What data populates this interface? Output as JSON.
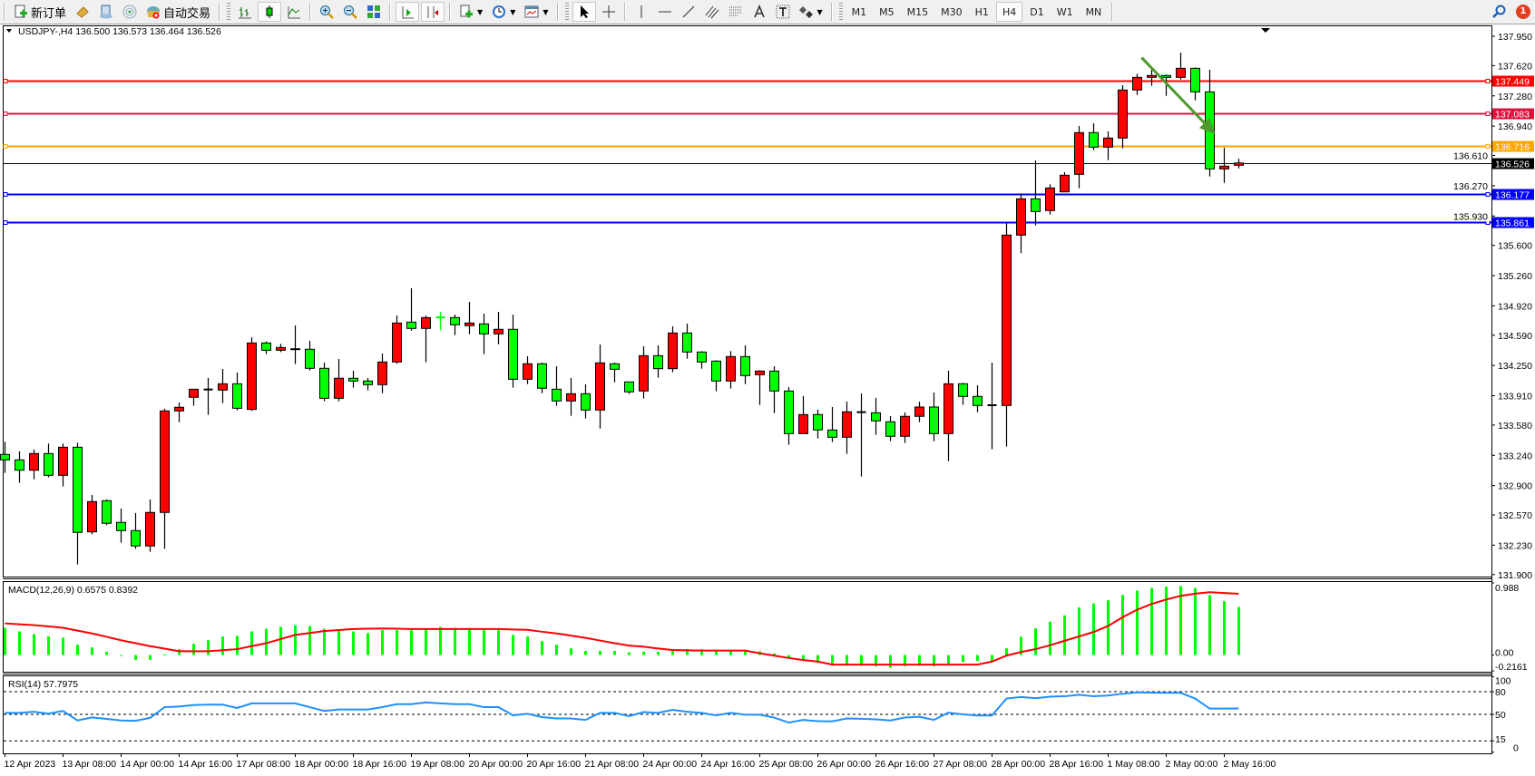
{
  "toolbar": {
    "new_order_label": "新订单",
    "auto_trading_label": "自动交易",
    "timeframes": [
      "M1",
      "M5",
      "M15",
      "M30",
      "H1",
      "H4",
      "D1",
      "W1",
      "MN"
    ],
    "active_timeframe": "H4",
    "notification_count": "1",
    "icons": [
      "new-order-icon",
      "market-watch-icon",
      "navigator-icon",
      "signals-icon",
      "auto-trading-icon",
      "bar-chart-icon",
      "candlestick-icon",
      "line-chart-icon",
      "zoom-in-icon",
      "zoom-out-icon",
      "tile-windows-icon",
      "auto-scroll-icon",
      "chart-shift-icon",
      "indicators-icon",
      "periods-icon",
      "templates-icon",
      "cursor-icon",
      "crosshair-icon",
      "vertical-line-icon",
      "horizontal-line-icon",
      "trendline-icon",
      "equidistant-channel-icon",
      "fibonacci-icon",
      "text-icon",
      "text-label-icon",
      "arrows-icon",
      "search-icon",
      "notification-icon"
    ]
  },
  "chart": {
    "title": "USDJPY-,H4",
    "ohlc_text": "136.500 136.573 136.464 136.526"
  },
  "chart_data": {
    "type": "candlestick",
    "symbol": "USDJPY-",
    "timeframe": "H4",
    "ylim": [
      131.898,
      138.072
    ],
    "price_ticks": [
      "137.950",
      "137.620",
      "137.280",
      "136.940",
      "136.610",
      "136.270",
      "135.930",
      "135.600",
      "135.260",
      "134.920",
      "134.590",
      "134.250",
      "133.910",
      "133.580",
      "133.240",
      "132.900",
      "132.570",
      "132.230",
      "131.900"
    ],
    "bull_color": "#ff0000",
    "bear_color": "#00ff00",
    "candles_ohlc": [
      [
        133.25,
        133.392,
        133.043,
        133.189
      ],
      [
        133.189,
        133.284,
        132.931,
        133.073
      ],
      [
        133.073,
        133.304,
        132.971,
        133.26
      ],
      [
        133.26,
        133.372,
        132.992,
        133.015
      ],
      [
        133.015,
        133.372,
        132.89,
        133.331
      ],
      [
        133.331,
        133.382,
        132.014,
        132.374
      ],
      [
        132.38,
        132.795,
        132.353,
        132.72
      ],
      [
        132.73,
        132.744,
        132.455,
        132.476
      ],
      [
        132.486,
        132.642,
        132.258,
        132.394
      ],
      [
        132.394,
        132.591,
        132.19,
        132.221
      ],
      [
        132.221,
        132.744,
        132.156,
        132.598
      ],
      [
        132.598,
        133.763,
        132.19,
        133.739
      ],
      [
        133.739,
        133.834,
        133.613,
        133.78
      ],
      [
        133.892,
        133.983,
        133.797,
        133.983
      ],
      [
        133.98,
        134.109,
        133.695,
        133.977
      ],
      [
        133.973,
        134.211,
        133.827,
        134.044
      ],
      [
        134.044,
        134.17,
        133.746,
        133.769
      ],
      [
        133.756,
        134.567,
        133.739,
        134.503
      ],
      [
        134.503,
        134.52,
        134.377,
        134.421
      ],
      [
        134.421,
        134.493,
        134.401,
        134.452
      ],
      [
        134.438,
        134.7,
        134.265,
        134.432
      ],
      [
        134.432,
        134.527,
        134.194,
        134.218
      ],
      [
        134.218,
        134.282,
        133.848,
        133.881
      ],
      [
        133.881,
        134.323,
        133.848,
        134.106
      ],
      [
        134.106,
        134.191,
        134.0,
        134.075
      ],
      [
        134.075,
        134.109,
        133.97,
        134.034
      ],
      [
        134.034,
        134.384,
        133.939,
        134.289
      ],
      [
        134.289,
        134.812,
        134.269,
        134.727
      ],
      [
        134.737,
        135.118,
        134.642,
        134.666
      ],
      [
        134.666,
        134.809,
        134.286,
        134.788
      ],
      [
        134.79,
        134.853,
        134.642,
        134.786
      ],
      [
        134.788,
        134.822,
        134.591,
        134.707
      ],
      [
        134.697,
        134.965,
        134.601,
        134.727
      ],
      [
        134.717,
        134.832,
        134.377,
        134.605
      ],
      [
        134.605,
        134.853,
        134.489,
        134.656
      ],
      [
        134.656,
        134.822,
        134.0,
        134.095
      ],
      [
        134.095,
        134.354,
        134.041,
        134.269
      ],
      [
        134.269,
        134.282,
        133.939,
        133.994
      ],
      [
        133.983,
        134.241,
        133.797,
        133.851
      ],
      [
        133.851,
        134.109,
        133.684,
        133.932
      ],
      [
        133.932,
        134.038,
        133.654,
        133.749
      ],
      [
        133.749,
        134.486,
        133.542,
        134.279
      ],
      [
        134.269,
        134.282,
        134.061,
        134.207
      ],
      [
        134.065,
        134.065,
        133.929,
        133.953
      ],
      [
        133.963,
        134.466,
        133.878,
        134.36
      ],
      [
        134.36,
        134.476,
        134.112,
        134.214
      ],
      [
        134.214,
        134.69,
        134.174,
        134.615
      ],
      [
        134.615,
        134.72,
        134.326,
        134.401
      ],
      [
        134.401,
        134.411,
        134.214,
        134.289
      ],
      [
        134.299,
        134.309,
        133.96,
        134.075
      ],
      [
        134.075,
        134.411,
        133.99,
        134.35
      ],
      [
        134.35,
        134.476,
        134.041,
        134.136
      ],
      [
        134.146,
        134.197,
        133.807,
        134.187
      ],
      [
        134.187,
        134.241,
        133.715,
        133.963
      ],
      [
        133.963,
        134.007,
        133.359,
        133.484
      ],
      [
        133.484,
        133.905,
        133.484,
        133.698
      ],
      [
        133.698,
        133.752,
        133.43,
        133.525
      ],
      [
        133.525,
        133.783,
        133.389,
        133.443
      ],
      [
        133.443,
        133.844,
        133.257,
        133.729
      ],
      [
        133.725,
        133.936,
        133.002,
        133.722
      ],
      [
        133.718,
        133.885,
        133.471,
        133.627
      ],
      [
        133.617,
        133.681,
        133.399,
        133.454
      ],
      [
        133.454,
        133.722,
        133.379,
        133.678
      ],
      [
        133.678,
        133.844,
        133.613,
        133.783
      ],
      [
        133.783,
        133.946,
        133.399,
        133.484
      ],
      [
        133.484,
        134.191,
        133.175,
        134.044
      ],
      [
        134.044,
        134.055,
        133.807,
        133.902
      ],
      [
        133.902,
        134.027,
        133.725,
        133.8
      ],
      [
        133.803,
        134.282,
        133.308,
        133.8
      ],
      [
        133.8,
        135.855,
        133.338,
        135.715
      ],
      [
        135.715,
        136.184,
        135.512,
        136.123
      ],
      [
        136.123,
        136.554,
        135.824,
        135.98
      ],
      [
        135.991,
        136.286,
        135.946,
        136.245
      ],
      [
        136.201,
        136.422,
        136.201,
        136.388
      ],
      [
        136.398,
        136.941,
        136.242,
        136.867
      ],
      [
        136.867,
        136.972,
        136.67,
        136.704
      ],
      [
        136.704,
        136.88,
        136.558,
        136.806
      ],
      [
        136.806,
        137.4,
        136.69,
        137.346
      ],
      [
        137.346,
        137.529,
        137.291,
        137.488
      ],
      [
        137.488,
        137.573,
        137.393,
        137.509
      ],
      [
        137.509,
        137.519,
        137.281,
        137.488
      ],
      [
        137.488,
        137.767,
        137.464,
        137.59
      ],
      [
        137.59,
        137.6,
        137.23,
        137.325
      ],
      [
        137.325,
        137.573,
        136.374,
        136.459
      ],
      [
        136.459,
        136.697,
        136.303,
        136.49
      ],
      [
        136.5,
        136.573,
        136.464,
        136.526
      ]
    ],
    "levels": [
      {
        "price": 137.449,
        "label": "137.449",
        "color": "#ff0000"
      },
      {
        "price": 137.083,
        "label": "137.083",
        "color": "#dc143c"
      },
      {
        "price": 136.716,
        "label": "136.716",
        "color": "#ffa500"
      },
      {
        "price": 136.177,
        "label": "136.177",
        "color": "#0000ff"
      },
      {
        "price": 135.861,
        "label": "135.861",
        "color": "#0000ff"
      }
    ],
    "current_price": {
      "price": 136.526,
      "label": "136.526",
      "color": "#000000"
    },
    "arrow": {
      "color": "#4e9a2e",
      "from": [
        78,
        137.71
      ],
      "to": [
        83,
        136.85
      ]
    },
    "time_labels": [
      "12 Apr 2023",
      "13 Apr 08:00",
      "14 Apr 00:00",
      "14 Apr 16:00",
      "17 Apr 08:00",
      "18 Apr 00:00",
      "18 Apr 16:00",
      "19 Apr 08:00",
      "20 Apr 00:00",
      "20 Apr 16:00",
      "21 Apr 08:00",
      "24 Apr 00:00",
      "24 Apr 16:00",
      "25 Apr 08:00",
      "26 Apr 00:00",
      "26 Apr 16:00",
      "27 Apr 08:00",
      "28 Apr 00:00",
      "28 Apr 16:00",
      "1 May 08:00",
      "2 May 00:00",
      "2 May 16:00"
    ],
    "macd": {
      "label": "MACD(12,26,9) 0.6575 0.8392",
      "ylim": [
        -0.2161,
        0.988
      ],
      "tick_labels": [
        "0.988",
        "0.00",
        "-0.2161"
      ],
      "hist_color": "#00ff00",
      "signal_color": "#ff0000",
      "histogram": [
        0.373,
        0.324,
        0.288,
        0.255,
        0.239,
        0.142,
        0.105,
        0.045,
        -0.008,
        -0.065,
        -0.065,
        0.008,
        0.081,
        0.154,
        0.203,
        0.255,
        0.264,
        0.324,
        0.361,
        0.385,
        0.41,
        0.397,
        0.361,
        0.341,
        0.324,
        0.3,
        0.341,
        0.341,
        0.341,
        0.365,
        0.385,
        0.373,
        0.373,
        0.341,
        0.341,
        0.276,
        0.255,
        0.191,
        0.142,
        0.093,
        0.057,
        0.057,
        0.057,
        0.036,
        0.045,
        0.045,
        0.065,
        0.081,
        0.081,
        0.065,
        0.065,
        0.065,
        0.053,
        0.024,
        -0.049,
        -0.073,
        -0.109,
        -0.146,
        -0.146,
        -0.146,
        -0.154,
        -0.174,
        -0.154,
        -0.146,
        -0.154,
        -0.122,
        -0.097,
        -0.081,
        -0.081,
        0.093,
        0.251,
        0.365,
        0.458,
        0.543,
        0.653,
        0.706,
        0.75,
        0.823,
        0.884,
        0.92,
        0.937,
        0.945,
        0.92,
        0.823,
        0.738,
        0.6575
      ],
      "signal": [
        0.434,
        0.422,
        0.41,
        0.392,
        0.373,
        0.335,
        0.296,
        0.25,
        0.203,
        0.162,
        0.122,
        0.088,
        0.053,
        0.053,
        0.053,
        0.067,
        0.081,
        0.122,
        0.162,
        0.219,
        0.276,
        0.302,
        0.328,
        0.343,
        0.357,
        0.361,
        0.365,
        0.361,
        0.357,
        0.357,
        0.357,
        0.357,
        0.357,
        0.357,
        0.357,
        0.351,
        0.345,
        0.32,
        0.296,
        0.266,
        0.235,
        0.199,
        0.162,
        0.13,
        0.114,
        0.09,
        0.07,
        0.065,
        0.061,
        0.061,
        0.061,
        0.061,
        0.024,
        -0.008,
        -0.04,
        -0.069,
        -0.089,
        -0.13,
        -0.13,
        -0.13,
        -0.13,
        -0.13,
        -0.13,
        -0.13,
        -0.13,
        -0.13,
        -0.13,
        -0.13,
        -0.089,
        -0.008,
        0.041,
        0.081,
        0.134,
        0.195,
        0.255,
        0.316,
        0.397,
        0.519,
        0.62,
        0.7,
        0.76,
        0.81,
        0.84,
        0.86,
        0.85,
        0.8392
      ]
    },
    "rsi": {
      "label": "RSI(14) 57.7975",
      "ylim": [
        0,
        100
      ],
      "levels": [
        80,
        50,
        15
      ],
      "tick_labels": [
        "100",
        "80",
        "50",
        "15",
        "0"
      ],
      "color": "#1e90ff",
      "values": [
        52,
        52,
        53.5,
        51,
        54.6,
        42,
        46,
        44,
        42,
        41.5,
        45.4,
        59.6,
        60.4,
        62.3,
        63,
        63,
        58.5,
        64.6,
        64.6,
        64.6,
        64.6,
        59.6,
        54.6,
        56.5,
        56.5,
        56.5,
        59.6,
        63.5,
        63.5,
        65.8,
        64.6,
        63.5,
        63.5,
        59.6,
        59.6,
        48.8,
        50.8,
        46.5,
        44.6,
        44.6,
        42.7,
        52,
        52,
        47.7,
        53,
        52,
        56,
        53.5,
        52,
        48.8,
        52,
        49.6,
        49.6,
        45.8,
        39.2,
        42.7,
        41,
        40.8,
        44.6,
        44.2,
        43.5,
        42,
        45.8,
        46.9,
        42.7,
        52.3,
        50,
        48.5,
        48.5,
        71,
        73,
        71.5,
        73.5,
        74,
        76,
        74,
        75,
        77.3,
        79.2,
        78.8,
        78.5,
        78.5,
        71,
        57.7,
        57.7,
        57.7975
      ]
    }
  }
}
